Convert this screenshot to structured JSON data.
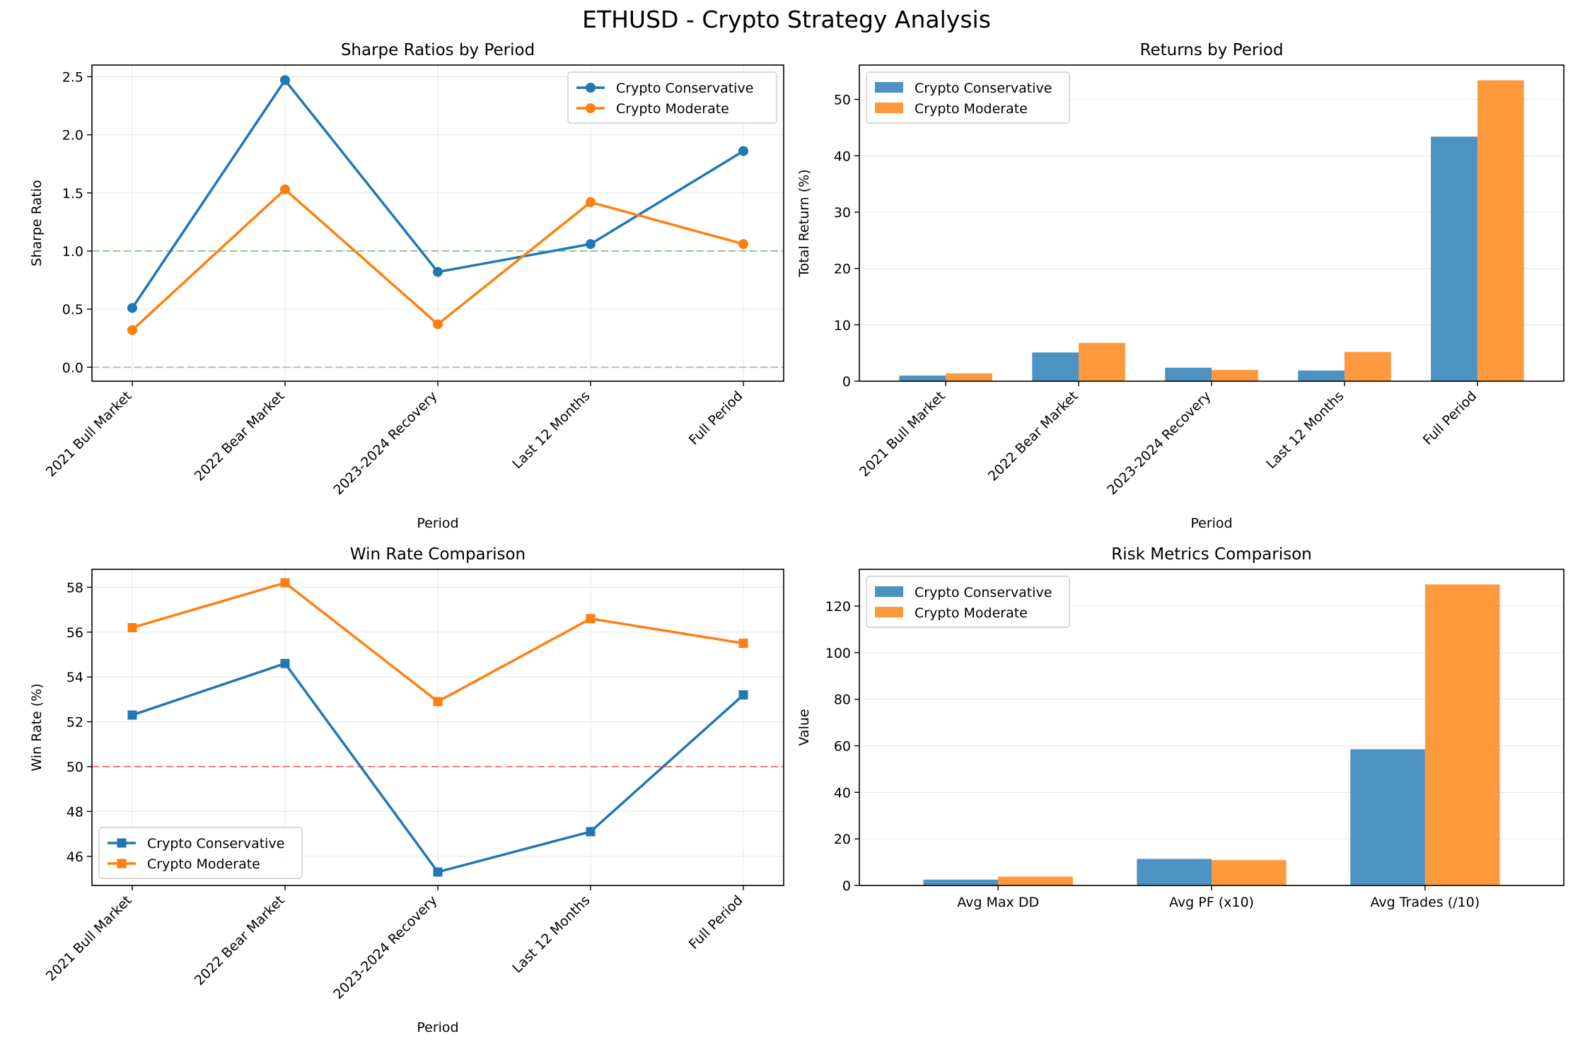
{
  "figure": {
    "suptitle": "ETHUSD - Crypto Strategy Analysis"
  },
  "colors": {
    "conservative": "#1f77b4",
    "moderate": "#ff7f0e",
    "grid": "#b0b0b0",
    "ref_green": "#2ca02c",
    "ref_gray": "#808080",
    "ref_red": "#ff0000"
  },
  "chart_data": [
    {
      "id": "sharpe",
      "type": "line",
      "marker": "circle",
      "title": "Sharpe Ratios by Period",
      "xlabel": "Period",
      "ylabel": "Sharpe Ratio",
      "categories": [
        "2021 Bull Market",
        "2022 Bear Market",
        "2023-2024 Recovery",
        "Last 12 Months",
        "Full Period"
      ],
      "series": [
        {
          "name": "Crypto Conservative",
          "values": [
            0.51,
            2.47,
            0.82,
            1.06,
            1.86
          ]
        },
        {
          "name": "Crypto Moderate",
          "values": [
            0.32,
            1.53,
            0.37,
            1.42,
            1.06
          ]
        }
      ],
      "yticks": [
        0.0,
        0.5,
        1.0,
        1.5,
        2.0,
        2.5
      ],
      "ylim": [
        -0.12,
        2.6
      ],
      "reference_lines": [
        {
          "y": 1.0,
          "color": "green"
        },
        {
          "y": 0.0,
          "color": "gray"
        }
      ],
      "legend": "upper right",
      "grid": true
    },
    {
      "id": "returns",
      "type": "bar",
      "title": "Returns by Period",
      "xlabel": "Period",
      "ylabel": "Total Return (%)",
      "categories": [
        "2021 Bull Market",
        "2022 Bear Market",
        "2023-2024 Recovery",
        "Last 12 Months",
        "Full Period"
      ],
      "series": [
        {
          "name": "Crypto Conservative",
          "values": [
            1.0,
            5.1,
            2.4,
            1.9,
            43.4
          ]
        },
        {
          "name": "Crypto Moderate",
          "values": [
            1.4,
            6.8,
            2.0,
            5.2,
            53.4
          ]
        }
      ],
      "yticks": [
        0,
        10,
        20,
        30,
        40,
        50
      ],
      "ylim": [
        0,
        56.1
      ],
      "legend": "upper left",
      "grid": true
    },
    {
      "id": "winrate",
      "type": "line",
      "marker": "square",
      "title": "Win Rate Comparison",
      "xlabel": "Period",
      "ylabel": "Win Rate (%)",
      "categories": [
        "2021 Bull Market",
        "2022 Bear Market",
        "2023-2024 Recovery",
        "Last 12 Months",
        "Full Period"
      ],
      "series": [
        {
          "name": "Crypto Conservative",
          "values": [
            52.3,
            54.6,
            45.3,
            47.1,
            53.2
          ]
        },
        {
          "name": "Crypto Moderate",
          "values": [
            56.2,
            58.2,
            52.9,
            56.6,
            55.5
          ]
        }
      ],
      "yticks": [
        46,
        48,
        50,
        52,
        54,
        56,
        58
      ],
      "ylim": [
        44.7,
        58.8
      ],
      "reference_lines": [
        {
          "y": 50,
          "color": "red"
        }
      ],
      "legend": "lower left",
      "grid": true
    },
    {
      "id": "risk",
      "type": "bar",
      "title": "Risk Metrics Comparison",
      "xlabel": "",
      "ylabel": "Value",
      "categories": [
        "Avg Max DD",
        "Avg PF (x10)",
        "Avg Trades (/10)"
      ],
      "series": [
        {
          "name": "Crypto Conservative",
          "values": [
            2.5,
            11.4,
            58.5
          ]
        },
        {
          "name": "Crypto Moderate",
          "values": [
            3.8,
            10.9,
            129.3
          ]
        }
      ],
      "yticks": [
        0,
        20,
        40,
        60,
        80,
        100,
        120
      ],
      "ylim": [
        0,
        135.8
      ],
      "legend": "upper left",
      "grid": true
    }
  ]
}
